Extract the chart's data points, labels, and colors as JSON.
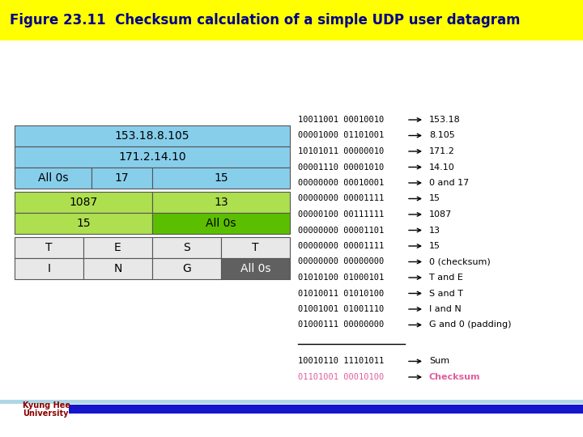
{
  "title": "Figure 23.11  Checksum calculation of a simple UDP user datagram",
  "title_bg": "#FFFF00",
  "title_fg": "#00008B",
  "bg_color": "#FFFFFF",
  "cyan_color": "#87CEEB",
  "green_color_light": "#ADDF4F",
  "green_color_dark": "#5BBF00",
  "gray_cell": "#606060",
  "light_gray_cell": "#E8E8E8",
  "right_lines": [
    {
      "binary": "10011001 00010010",
      "label": "153.18",
      "color": "#000000"
    },
    {
      "binary": "00001000 01101001",
      "label": "8.105",
      "color": "#000000"
    },
    {
      "binary": "10101011 00000010",
      "label": "171.2",
      "color": "#000000"
    },
    {
      "binary": "00001110 00001010",
      "label": "14.10",
      "color": "#000000"
    },
    {
      "binary": "00000000 00010001",
      "label": "0 and 17",
      "color": "#000000"
    },
    {
      "binary": "00000000 00001111",
      "label": "15",
      "color": "#000000"
    },
    {
      "binary": "00000100 00111111",
      "label": "1087",
      "color": "#000000"
    },
    {
      "binary": "00000000 00001101",
      "label": "13",
      "color": "#000000"
    },
    {
      "binary": "00000000 00001111",
      "label": "15",
      "color": "#000000"
    },
    {
      "binary": "00000000 00000000",
      "label": "0 (checksum)",
      "color": "#000000"
    },
    {
      "binary": "01010100 01000101",
      "label": "T and E",
      "color": "#000000"
    },
    {
      "binary": "01010011 01010100",
      "label": "S and T",
      "color": "#000000"
    },
    {
      "binary": "01001001 01001110",
      "label": "I and N",
      "color": "#000000"
    },
    {
      "binary": "01000111 00000000",
      "label": "G and 0 (padding)",
      "color": "#000000"
    }
  ],
  "sum_line": {
    "binary": "10010110 11101011",
    "label": "Sum",
    "color": "#000000"
  },
  "checksum_line": {
    "binary": "01101001 00010100",
    "label": "Checksum",
    "color": "#E060A0"
  },
  "footer_line_color": "#1515CC",
  "footer_line_color2": "#ADD8E6"
}
